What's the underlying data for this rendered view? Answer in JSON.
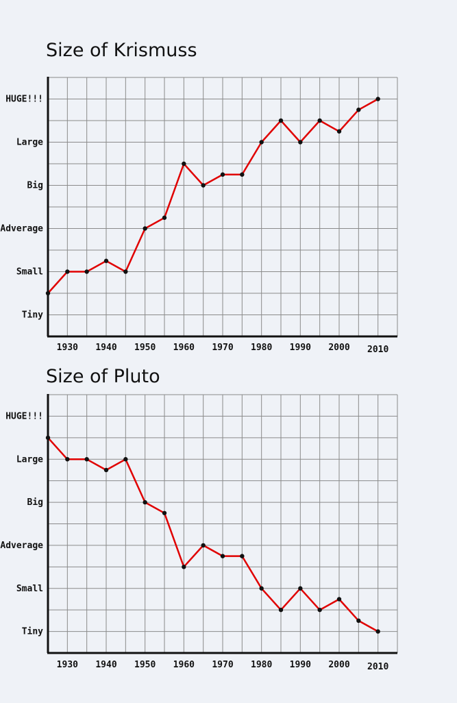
{
  "colors": {
    "background": "#eff2f7",
    "line": "#e00000",
    "point": "#111111",
    "grid": "#8a8a8a",
    "highlight_tick": "#cc0000"
  },
  "chart_data": [
    {
      "type": "line",
      "title": "Size of Krismuss",
      "xlabel": "",
      "ylabel": "",
      "x_ticks": [
        "1930",
        "1940",
        "1950",
        "1960",
        "1970",
        "1980",
        "1990",
        "2000",
        "2010"
      ],
      "x_tick_values": [
        1930,
        1940,
        1950,
        1960,
        1970,
        1980,
        1990,
        2000,
        2010
      ],
      "highlight_tick": "2010",
      "xlim": [
        1925,
        2015
      ],
      "y_ticks": [
        "Tiny",
        "Small",
        "Adverage",
        "Big",
        "Large",
        "HUGE!!!"
      ],
      "y_tick_values": [
        0,
        1,
        2,
        3,
        4,
        5
      ],
      "ylim": [
        -0.5,
        5.5
      ],
      "series": [
        {
          "name": "Krismuss",
          "x": [
            1925,
            1930,
            1935,
            1940,
            1945,
            1950,
            1955,
            1960,
            1965,
            1970,
            1975,
            1980,
            1985,
            1990,
            1995,
            2000,
            2005,
            2010
          ],
          "values": [
            0.5,
            1.0,
            1.0,
            1.25,
            1.0,
            2.0,
            2.25,
            3.5,
            3.0,
            3.25,
            3.25,
            4.0,
            4.5,
            4.0,
            4.5,
            4.25,
            4.75,
            5.0
          ]
        }
      ]
    },
    {
      "type": "line",
      "title": "Size of Pluto",
      "xlabel": "",
      "ylabel": "",
      "x_ticks": [
        "1930",
        "1940",
        "1950",
        "1960",
        "1970",
        "1980",
        "1990",
        "2000",
        "2010"
      ],
      "x_tick_values": [
        1930,
        1940,
        1950,
        1960,
        1970,
        1980,
        1990,
        2000,
        2010
      ],
      "highlight_tick": "2010",
      "xlim": [
        1925,
        2015
      ],
      "y_ticks": [
        "Tiny",
        "Small",
        "Adverage",
        "Big",
        "Large",
        "HUGE!!!"
      ],
      "y_tick_values": [
        0,
        1,
        2,
        3,
        4,
        5
      ],
      "ylim": [
        -0.5,
        5.5
      ],
      "series": [
        {
          "name": "Pluto",
          "x": [
            1925,
            1930,
            1935,
            1940,
            1945,
            1950,
            1955,
            1960,
            1965,
            1970,
            1975,
            1980,
            1985,
            1990,
            1995,
            2000,
            2005,
            2010
          ],
          "values": [
            4.5,
            4.0,
            4.0,
            3.75,
            4.0,
            3.0,
            2.75,
            1.5,
            2.0,
            1.75,
            1.75,
            1.0,
            0.5,
            1.0,
            0.5,
            0.75,
            0.25,
            0.0
          ]
        }
      ]
    }
  ]
}
